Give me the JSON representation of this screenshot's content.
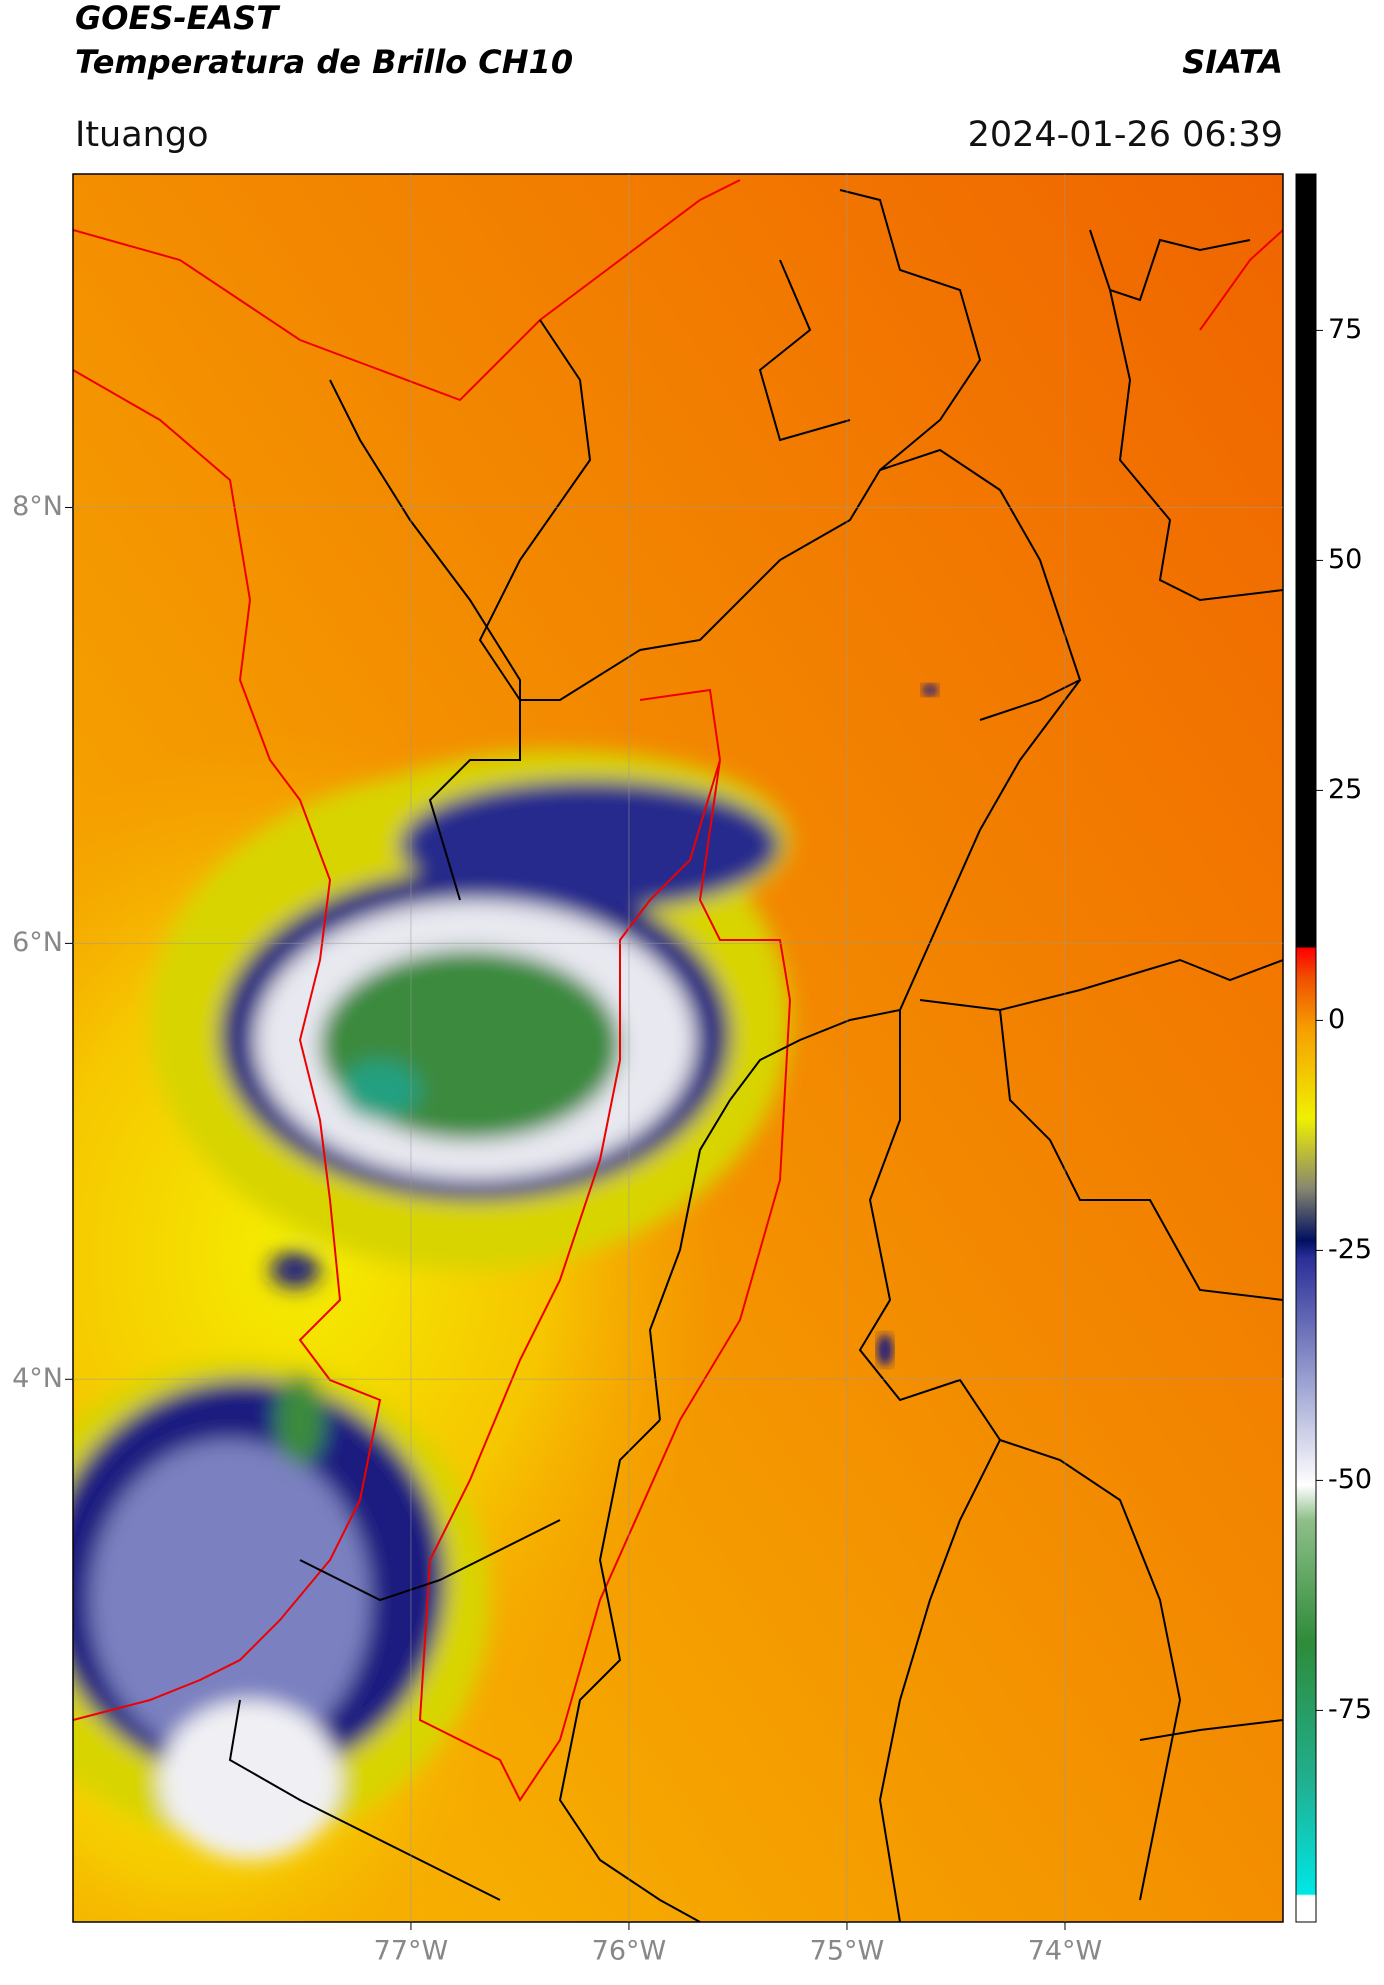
{
  "header": {
    "title": "GOES-EAST",
    "subtitle": "Temperatura de Brillo CH10",
    "source": "SIATA",
    "location": "Ituango",
    "timestamp": "2024-01-26 06:39"
  },
  "map": {
    "xlim": [
      -78.55,
      -73.0
    ],
    "ylim": [
      1.51,
      9.53
    ],
    "xticks": [
      {
        "value": -77,
        "label": "77°W"
      },
      {
        "value": -76,
        "label": "76°W"
      },
      {
        "value": -75,
        "label": "75°W"
      },
      {
        "value": -74,
        "label": "74°W"
      }
    ],
    "yticks": [
      {
        "value": 8,
        "label": "8°N"
      },
      {
        "value": 6,
        "label": "6°N"
      },
      {
        "value": 4,
        "label": "4°N"
      }
    ],
    "grid": true
  },
  "colorbar": {
    "lim": [
      -98,
      92
    ],
    "ticks": [
      75,
      50,
      25,
      0,
      -25,
      -50,
      -75
    ]
  }
}
